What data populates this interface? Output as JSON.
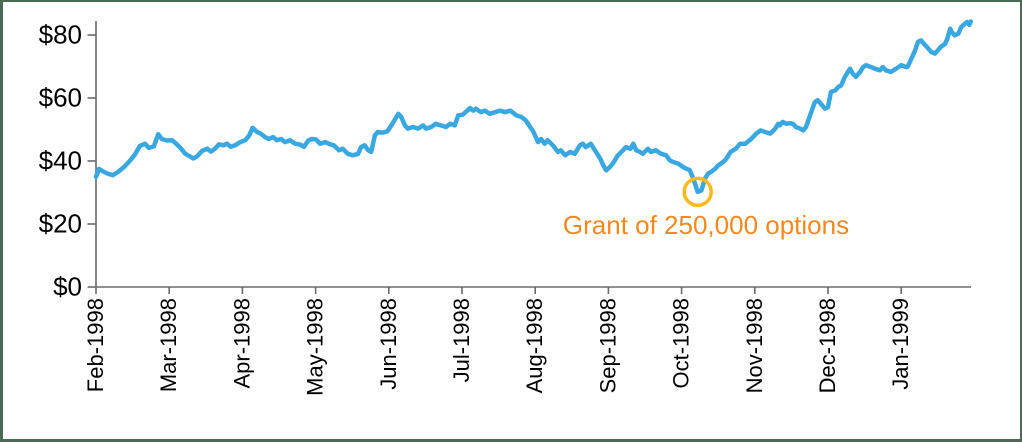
{
  "colors": {
    "line": "#39A7E0",
    "axis": "#6B6B6B",
    "tick_label": "#000000",
    "annotation_text": "#F5891D",
    "annotation_circle": "#FFB81E",
    "frame_border": "#4B6A53",
    "background": "#FFFFFF"
  },
  "chart_data": {
    "type": "line",
    "title": "",
    "xlabel": "",
    "ylabel": "",
    "x_unit": "months since Feb-1998",
    "y_unit": "USD share price",
    "ylim": [
      0,
      85
    ],
    "xlim_months": [
      0,
      11.95
    ],
    "grid": false,
    "legend": "none",
    "x_axis": {
      "tick_interval_months": 1,
      "tick_labels": [
        "Feb-1998",
        "Mar-1998",
        "Apr-1998",
        "May-1998",
        "Jun-1998",
        "Jul-1998",
        "Aug-1998",
        "Sep-1998",
        "Oct-1998",
        "Nov-1998",
        "Dec-1998",
        "Jan-1999"
      ]
    },
    "y_axis": {
      "ticks": [
        {
          "value": 0,
          "label": "$0"
        },
        {
          "value": 20,
          "label": "$20"
        },
        {
          "value": 40,
          "label": "$40"
        },
        {
          "value": 60,
          "label": "$60"
        },
        {
          "value": 80,
          "label": "$80"
        }
      ]
    },
    "series": [
      {
        "name": "stock price",
        "color": "#39A7E0",
        "points": [
          [
            0,
            35
          ],
          [
            0.04,
            37.5
          ],
          [
            0.11,
            36.5
          ],
          [
            0.16,
            36
          ],
          [
            0.23,
            35.5
          ],
          [
            0.3,
            36.5
          ],
          [
            0.38,
            38
          ],
          [
            0.46,
            40
          ],
          [
            0.53,
            42
          ],
          [
            0.6,
            44.8
          ],
          [
            0.67,
            45.5
          ],
          [
            0.72,
            44.2
          ],
          [
            0.79,
            44.6
          ],
          [
            0.85,
            48.5
          ],
          [
            0.9,
            47
          ],
          [
            0.97,
            46.5
          ],
          [
            1.04,
            46.6
          ],
          [
            1.09,
            45.6
          ],
          [
            1.16,
            44
          ],
          [
            1.22,
            42.3
          ],
          [
            1.28,
            41.5
          ],
          [
            1.33,
            40.8
          ],
          [
            1.38,
            41.5
          ],
          [
            1.45,
            43.2
          ],
          [
            1.52,
            43.9
          ],
          [
            1.57,
            43
          ],
          [
            1.63,
            44
          ],
          [
            1.68,
            45.3
          ],
          [
            1.74,
            45
          ],
          [
            1.79,
            45.5
          ],
          [
            1.84,
            44.5
          ],
          [
            1.9,
            45
          ],
          [
            1.97,
            46
          ],
          [
            2.04,
            46.6
          ],
          [
            2.09,
            48
          ],
          [
            2.14,
            50.5
          ],
          [
            2.2,
            49.2
          ],
          [
            2.25,
            48.7
          ],
          [
            2.31,
            47.6
          ],
          [
            2.36,
            47
          ],
          [
            2.42,
            47.6
          ],
          [
            2.47,
            46.6
          ],
          [
            2.53,
            47
          ],
          [
            2.58,
            46
          ],
          [
            2.65,
            46.6
          ],
          [
            2.72,
            45.5
          ],
          [
            2.79,
            45.2
          ],
          [
            2.84,
            44.5
          ],
          [
            2.9,
            46.5
          ],
          [
            2.95,
            47
          ],
          [
            3.01,
            46.8
          ],
          [
            3.06,
            45.5
          ],
          [
            3.13,
            46
          ],
          [
            3.2,
            45.3
          ],
          [
            3.25,
            45
          ],
          [
            3.32,
            43.4
          ],
          [
            3.37,
            43.9
          ],
          [
            3.44,
            42.3
          ],
          [
            3.51,
            41.8
          ],
          [
            3.58,
            42.3
          ],
          [
            3.62,
            44.4
          ],
          [
            3.67,
            45
          ],
          [
            3.72,
            43.4
          ],
          [
            3.76,
            42.9
          ],
          [
            3.81,
            48.2
          ],
          [
            3.85,
            49.2
          ],
          [
            3.91,
            49
          ],
          [
            3.98,
            49.4
          ],
          [
            4.04,
            51.5
          ],
          [
            4.13,
            55
          ],
          [
            4.17,
            54
          ],
          [
            4.22,
            51.3
          ],
          [
            4.26,
            50.3
          ],
          [
            4.33,
            50.8
          ],
          [
            4.4,
            50.3
          ],
          [
            4.47,
            51.3
          ],
          [
            4.51,
            50.3
          ],
          [
            4.58,
            50.8
          ],
          [
            4.64,
            51.8
          ],
          [
            4.71,
            51.3
          ],
          [
            4.78,
            50.8
          ],
          [
            4.84,
            51.8
          ],
          [
            4.9,
            51.3
          ],
          [
            4.95,
            54.5
          ],
          [
            5.01,
            54.7
          ],
          [
            5.11,
            56.8
          ],
          [
            5.15,
            56
          ],
          [
            5.19,
            56.6
          ],
          [
            5.26,
            55.5
          ],
          [
            5.31,
            56
          ],
          [
            5.38,
            55
          ],
          [
            5.45,
            55.5
          ],
          [
            5.52,
            56
          ],
          [
            5.59,
            55.5
          ],
          [
            5.66,
            56
          ],
          [
            5.74,
            54.5
          ],
          [
            5.81,
            54
          ],
          [
            5.87,
            52.9
          ],
          [
            5.97,
            49.5
          ],
          [
            6.04,
            46
          ],
          [
            6.08,
            47
          ],
          [
            6.13,
            45.5
          ],
          [
            6.17,
            46.6
          ],
          [
            6.24,
            45
          ],
          [
            6.31,
            42.9
          ],
          [
            6.35,
            43.4
          ],
          [
            6.41,
            41.8
          ],
          [
            6.48,
            42.9
          ],
          [
            6.54,
            42.3
          ],
          [
            6.61,
            45
          ],
          [
            6.65,
            45.5
          ],
          [
            6.69,
            44.4
          ],
          [
            6.76,
            45.5
          ],
          [
            6.83,
            42.9
          ],
          [
            6.89,
            40.7
          ],
          [
            6.93,
            38.6
          ],
          [
            6.97,
            37
          ],
          [
            7.02,
            38.1
          ],
          [
            7.06,
            39.2
          ],
          [
            7.13,
            41.8
          ],
          [
            7.2,
            43.4
          ],
          [
            7.24,
            44.4
          ],
          [
            7.3,
            43.9
          ],
          [
            7.34,
            45.5
          ],
          [
            7.38,
            43.4
          ],
          [
            7.43,
            42.9
          ],
          [
            7.47,
            42.3
          ],
          [
            7.54,
            43.9
          ],
          [
            7.58,
            42.9
          ],
          [
            7.65,
            43.4
          ],
          [
            7.72,
            42.3
          ],
          [
            7.79,
            41.8
          ],
          [
            7.84,
            40.2
          ],
          [
            7.88,
            39.7
          ],
          [
            7.95,
            39.2
          ],
          [
            8.02,
            38.1
          ],
          [
            8.06,
            37.6
          ],
          [
            8.11,
            37.1
          ],
          [
            8.16,
            34.4
          ],
          [
            8.22,
            30.2
          ],
          [
            8.27,
            30.7
          ],
          [
            8.32,
            34.4
          ],
          [
            8.36,
            36
          ],
          [
            8.4,
            36.5
          ],
          [
            8.46,
            37.6
          ],
          [
            8.5,
            38.6
          ],
          [
            8.57,
            39.7
          ],
          [
            8.61,
            40.7
          ],
          [
            8.67,
            42.9
          ],
          [
            8.74,
            43.9
          ],
          [
            8.8,
            45.5
          ],
          [
            8.87,
            45.5
          ],
          [
            8.95,
            47
          ],
          [
            9.02,
            48.7
          ],
          [
            9.08,
            49.7
          ],
          [
            9.14,
            49.2
          ],
          [
            9.21,
            48.7
          ],
          [
            9.28,
            50.3
          ],
          [
            9.32,
            51.8
          ],
          [
            9.34,
            51.3
          ],
          [
            9.38,
            52.4
          ],
          [
            9.43,
            51.8
          ],
          [
            9.48,
            52
          ],
          [
            9.52,
            51.8
          ],
          [
            9.56,
            50.8
          ],
          [
            9.62,
            50.3
          ],
          [
            9.66,
            49.7
          ],
          [
            9.7,
            50.8
          ],
          [
            9.77,
            55.5
          ],
          [
            9.82,
            58.7
          ],
          [
            9.86,
            59.3
          ],
          [
            9.9,
            58.2
          ],
          [
            9.96,
            56.6
          ],
          [
            10,
            57.1
          ],
          [
            10.04,
            61.9
          ],
          [
            10.1,
            62.4
          ],
          [
            10.14,
            63.5
          ],
          [
            10.18,
            64
          ],
          [
            10.23,
            66.7
          ],
          [
            10.3,
            69.3
          ],
          [
            10.34,
            67.7
          ],
          [
            10.38,
            66.7
          ],
          [
            10.44,
            68.3
          ],
          [
            10.48,
            69.8
          ],
          [
            10.52,
            70.4
          ],
          [
            10.59,
            69.8
          ],
          [
            10.64,
            69.3
          ],
          [
            10.71,
            68.8
          ],
          [
            10.75,
            69.8
          ],
          [
            10.79,
            68.8
          ],
          [
            10.86,
            68.3
          ],
          [
            10.93,
            69.3
          ],
          [
            11,
            70.4
          ],
          [
            11.07,
            69.8
          ],
          [
            11.09,
            70
          ],
          [
            11.13,
            72
          ],
          [
            11.19,
            75.1
          ],
          [
            11.23,
            77.8
          ],
          [
            11.27,
            78.3
          ],
          [
            11.33,
            76.7
          ],
          [
            11.37,
            75.7
          ],
          [
            11.41,
            74.6
          ],
          [
            11.46,
            74.1
          ],
          [
            11.5,
            75.1
          ],
          [
            11.54,
            76.2
          ],
          [
            11.6,
            77.2
          ],
          [
            11.63,
            78.8
          ],
          [
            11.67,
            82
          ],
          [
            11.69,
            81
          ],
          [
            11.73,
            79.9
          ],
          [
            11.78,
            80.4
          ],
          [
            11.82,
            82.5
          ],
          [
            11.87,
            83.6
          ],
          [
            11.9,
            84.1
          ],
          [
            11.93,
            83.2
          ],
          [
            11.95,
            84.3
          ]
        ]
      }
    ],
    "annotation": {
      "text": "Grant of 250,000 options",
      "text_color": "#F5891D",
      "circle": {
        "t": 8.22,
        "price": 30.2,
        "radius_px": 13.5,
        "color": "#FFB81E"
      }
    }
  }
}
